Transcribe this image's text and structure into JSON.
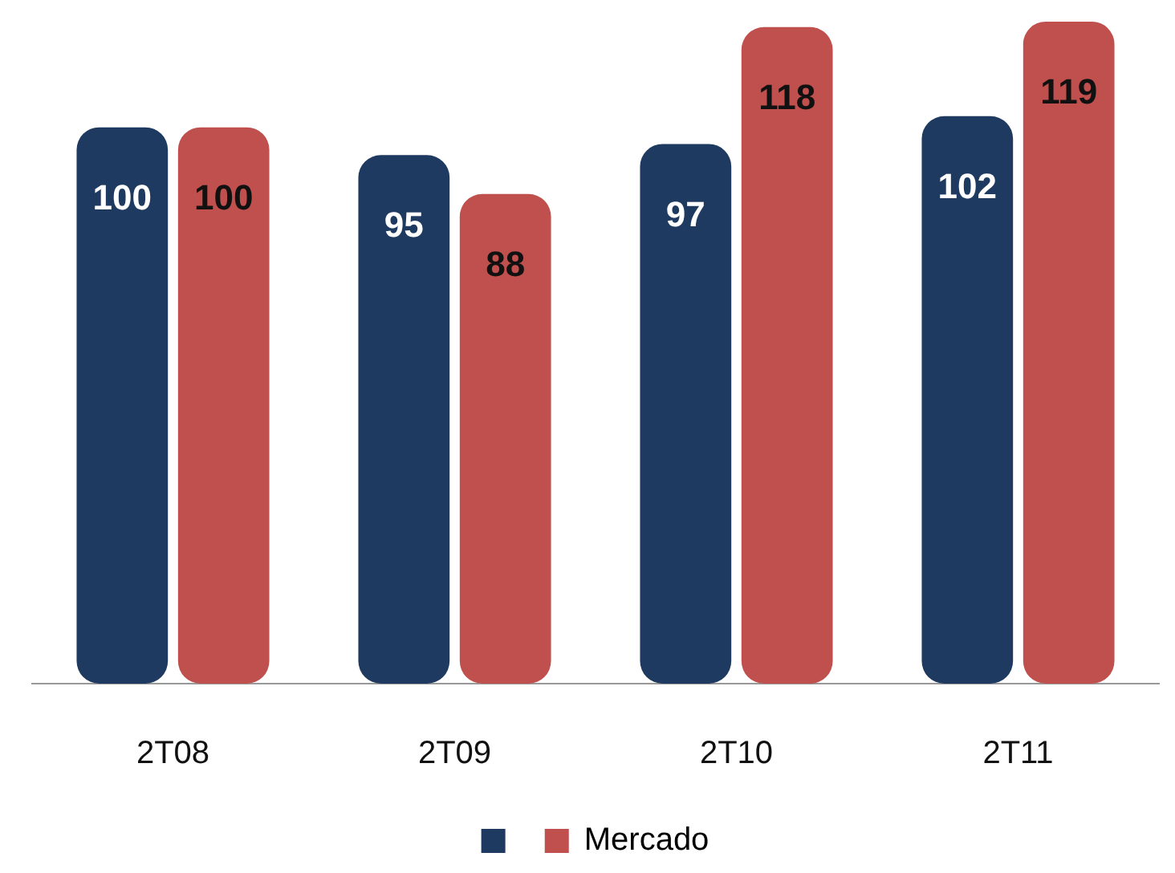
{
  "chart_data": {
    "type": "bar",
    "categories": [
      "2T08",
      "2T09",
      "2T10",
      "2T11"
    ],
    "series": [
      {
        "color": "#1f3a60",
        "values": [
          100,
          95,
          97,
          102
        ]
      },
      {
        "name": "Mercado",
        "color": "#c0504d",
        "values": [
          100,
          88,
          118,
          119
        ]
      }
    ],
    "data_labels": true,
    "grid": false,
    "legend": "bottom"
  }
}
